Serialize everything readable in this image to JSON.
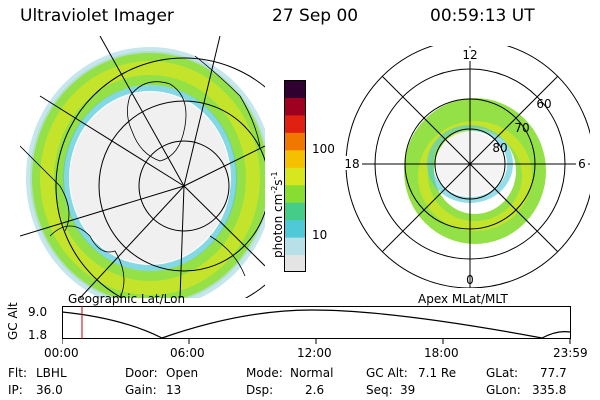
{
  "header": {
    "instrument": "Ultraviolet Imager",
    "date": "27 Sep 00",
    "time": "00:59:13 UT"
  },
  "left_panel": {
    "caption": "Geographic Lat/Lon"
  },
  "right_panel": {
    "caption": "Apex MLat/MLT",
    "mlt_labels": [
      "12",
      "18",
      "6",
      "0"
    ],
    "lat_labels": [
      "60",
      "70",
      "80"
    ]
  },
  "colorbar": {
    "unit_label": "photon cm",
    "unit_sup1": "-2",
    "unit_mid": "s",
    "unit_sup2": "-1",
    "ticks": [
      "100",
      "10"
    ],
    "colors": [
      "#e4e4e4",
      "#b8e0e8",
      "#4fc8d8",
      "#44cc88",
      "#88dd33",
      "#d8e620",
      "#f4c000",
      "#f07800",
      "#e02010",
      "#a00020",
      "#300030"
    ]
  },
  "altitude_plot": {
    "ylabel": "GC Alt",
    "yticks": [
      "9.0",
      "1.8"
    ],
    "xticks": [
      "00:00",
      "06:00",
      "12:00",
      "18:00",
      "23:59"
    ],
    "current_time_color": "#cc0000"
  },
  "info": {
    "flt_label": "Flt:",
    "flt_value": "LBHL",
    "ip_label": "IP:",
    "ip_value": "36.0",
    "door_label": "Door:",
    "door_value": "Open",
    "gain_label": "Gain:",
    "gain_value": "13",
    "mode_label": "Mode:",
    "mode_value": "Normal",
    "dsp_label": "Dsp:",
    "dsp_value": "2.6",
    "gcalt_label": "GC Alt:",
    "gcalt_value": "7.1 Re",
    "seq_label": "Seq:",
    "seq_value": "39",
    "glat_label": "GLat:",
    "glat_value": "77.7",
    "glon_label": "GLon:",
    "glon_value": "335.8"
  }
}
